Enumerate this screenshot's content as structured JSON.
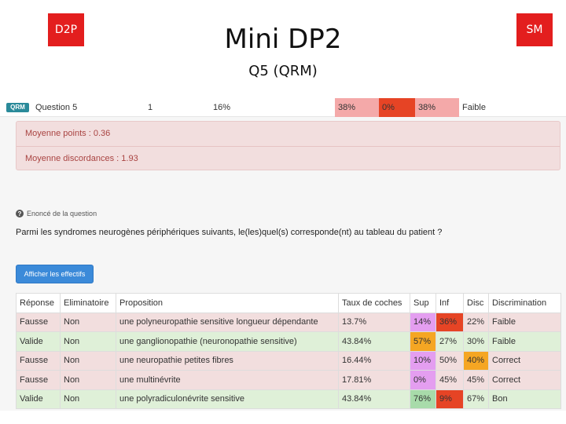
{
  "slide": {
    "badge_left": "D2P",
    "badge_right": "SM",
    "title": "Mini DP2",
    "subtitle": "Q5 (QRM)"
  },
  "colors": {
    "badge_red": "#e31e1e",
    "row_fausse": "#f2dede",
    "row_valide": "#dff0d8",
    "purple": "#e49ef0",
    "orange": "#f5a623",
    "red": "#e64425",
    "green": "#a8dbaa",
    "button_blue": "#3b8ad9"
  },
  "question_header": {
    "tag": "QRM",
    "label": "Question 5",
    "number": "1",
    "percent": "16%",
    "bar": [
      "38%",
      "0%",
      "38%"
    ],
    "rating": "Faible"
  },
  "stats": {
    "moyenne_points": "Moyenne points : 0.36",
    "moyenne_discordances": "Moyenne discordances : 1.93"
  },
  "enonce": {
    "icon": "question-circle-icon",
    "label": "Enoncé de la question",
    "text": "Parmi les syndromes neurogènes périphériques suivants, le(les)quel(s) corresponde(nt) au tableau du patient ?"
  },
  "button_label": "Afficher les effectifs",
  "table": {
    "headers": [
      "Réponse",
      "Eliminatoire",
      "Proposition",
      "Taux de coches",
      "Sup",
      "Inf",
      "Disc",
      "Discrimination"
    ],
    "rows": [
      {
        "reponse": "Fausse",
        "elim": "Non",
        "prop": "une polyneuropathie sensitive longueur dépendante",
        "taux": "13.7%",
        "sup": "14%",
        "inf": "36%",
        "disc": "22%",
        "discrim": "Faible"
      },
      {
        "reponse": "Valide",
        "elim": "Non",
        "prop": "une ganglionopathie (neuronopathie sensitive)",
        "taux": "43.84%",
        "sup": "57%",
        "inf": "27%",
        "disc": "30%",
        "discrim": "Faible"
      },
      {
        "reponse": "Fausse",
        "elim": "Non",
        "prop": "une neuropathie petites fibres",
        "taux": "16.44%",
        "sup": "10%",
        "inf": "50%",
        "disc": "40%",
        "discrim": "Correct"
      },
      {
        "reponse": "Fausse",
        "elim": "Non",
        "prop": "une multinévrite",
        "taux": "17.81%",
        "sup": "0%",
        "inf": "45%",
        "disc": "45%",
        "discrim": "Correct"
      },
      {
        "reponse": "Valide",
        "elim": "Non",
        "prop": "une polyradiculonévrite sensitive",
        "taux": "43.84%",
        "sup": "76%",
        "inf": "9%",
        "disc": "67%",
        "discrim": "Bon"
      }
    ]
  }
}
